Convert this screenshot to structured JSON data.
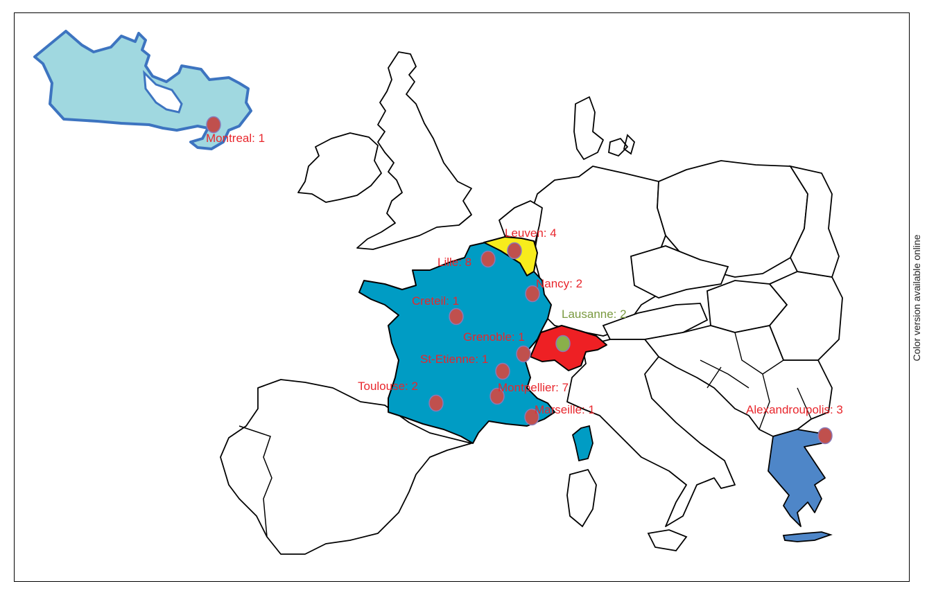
{
  "note": "Color version available online",
  "colors": {
    "canada": "#a0d8e0",
    "canada_outline": "#3d74c0",
    "france": "#009cc4",
    "belgium": "#f7ec1c",
    "switzerland": "#ee2024",
    "greece": "#4e86c8",
    "marker": "#c0504d",
    "marker_ch": "#8ab04a",
    "label": "#e8262c",
    "label_ch": "#7a9a40"
  },
  "icons": {
    "marker": "circle-marker-icon"
  },
  "cities": [
    {
      "name": "montreal",
      "label": "Montreal: 1"
    },
    {
      "name": "leuven",
      "label": "Leuven: 4"
    },
    {
      "name": "lille",
      "label": "Lille: 8"
    },
    {
      "name": "nancy",
      "label": "Nancy: 2"
    },
    {
      "name": "creteil",
      "label": "Creteil: 1"
    },
    {
      "name": "lausanne",
      "label": "Lausanne: 2"
    },
    {
      "name": "grenoble",
      "label": "Grenoble: 1"
    },
    {
      "name": "st-etienne",
      "label": "St-Etienne: 1"
    },
    {
      "name": "toulouse",
      "label": "Toulouse: 2"
    },
    {
      "name": "montpellier",
      "label": "Montpellier: 7"
    },
    {
      "name": "marseille",
      "label": "Marseille: 1"
    },
    {
      "name": "alexandroupolis",
      "label": "Alexandroupolis: 3"
    }
  ]
}
